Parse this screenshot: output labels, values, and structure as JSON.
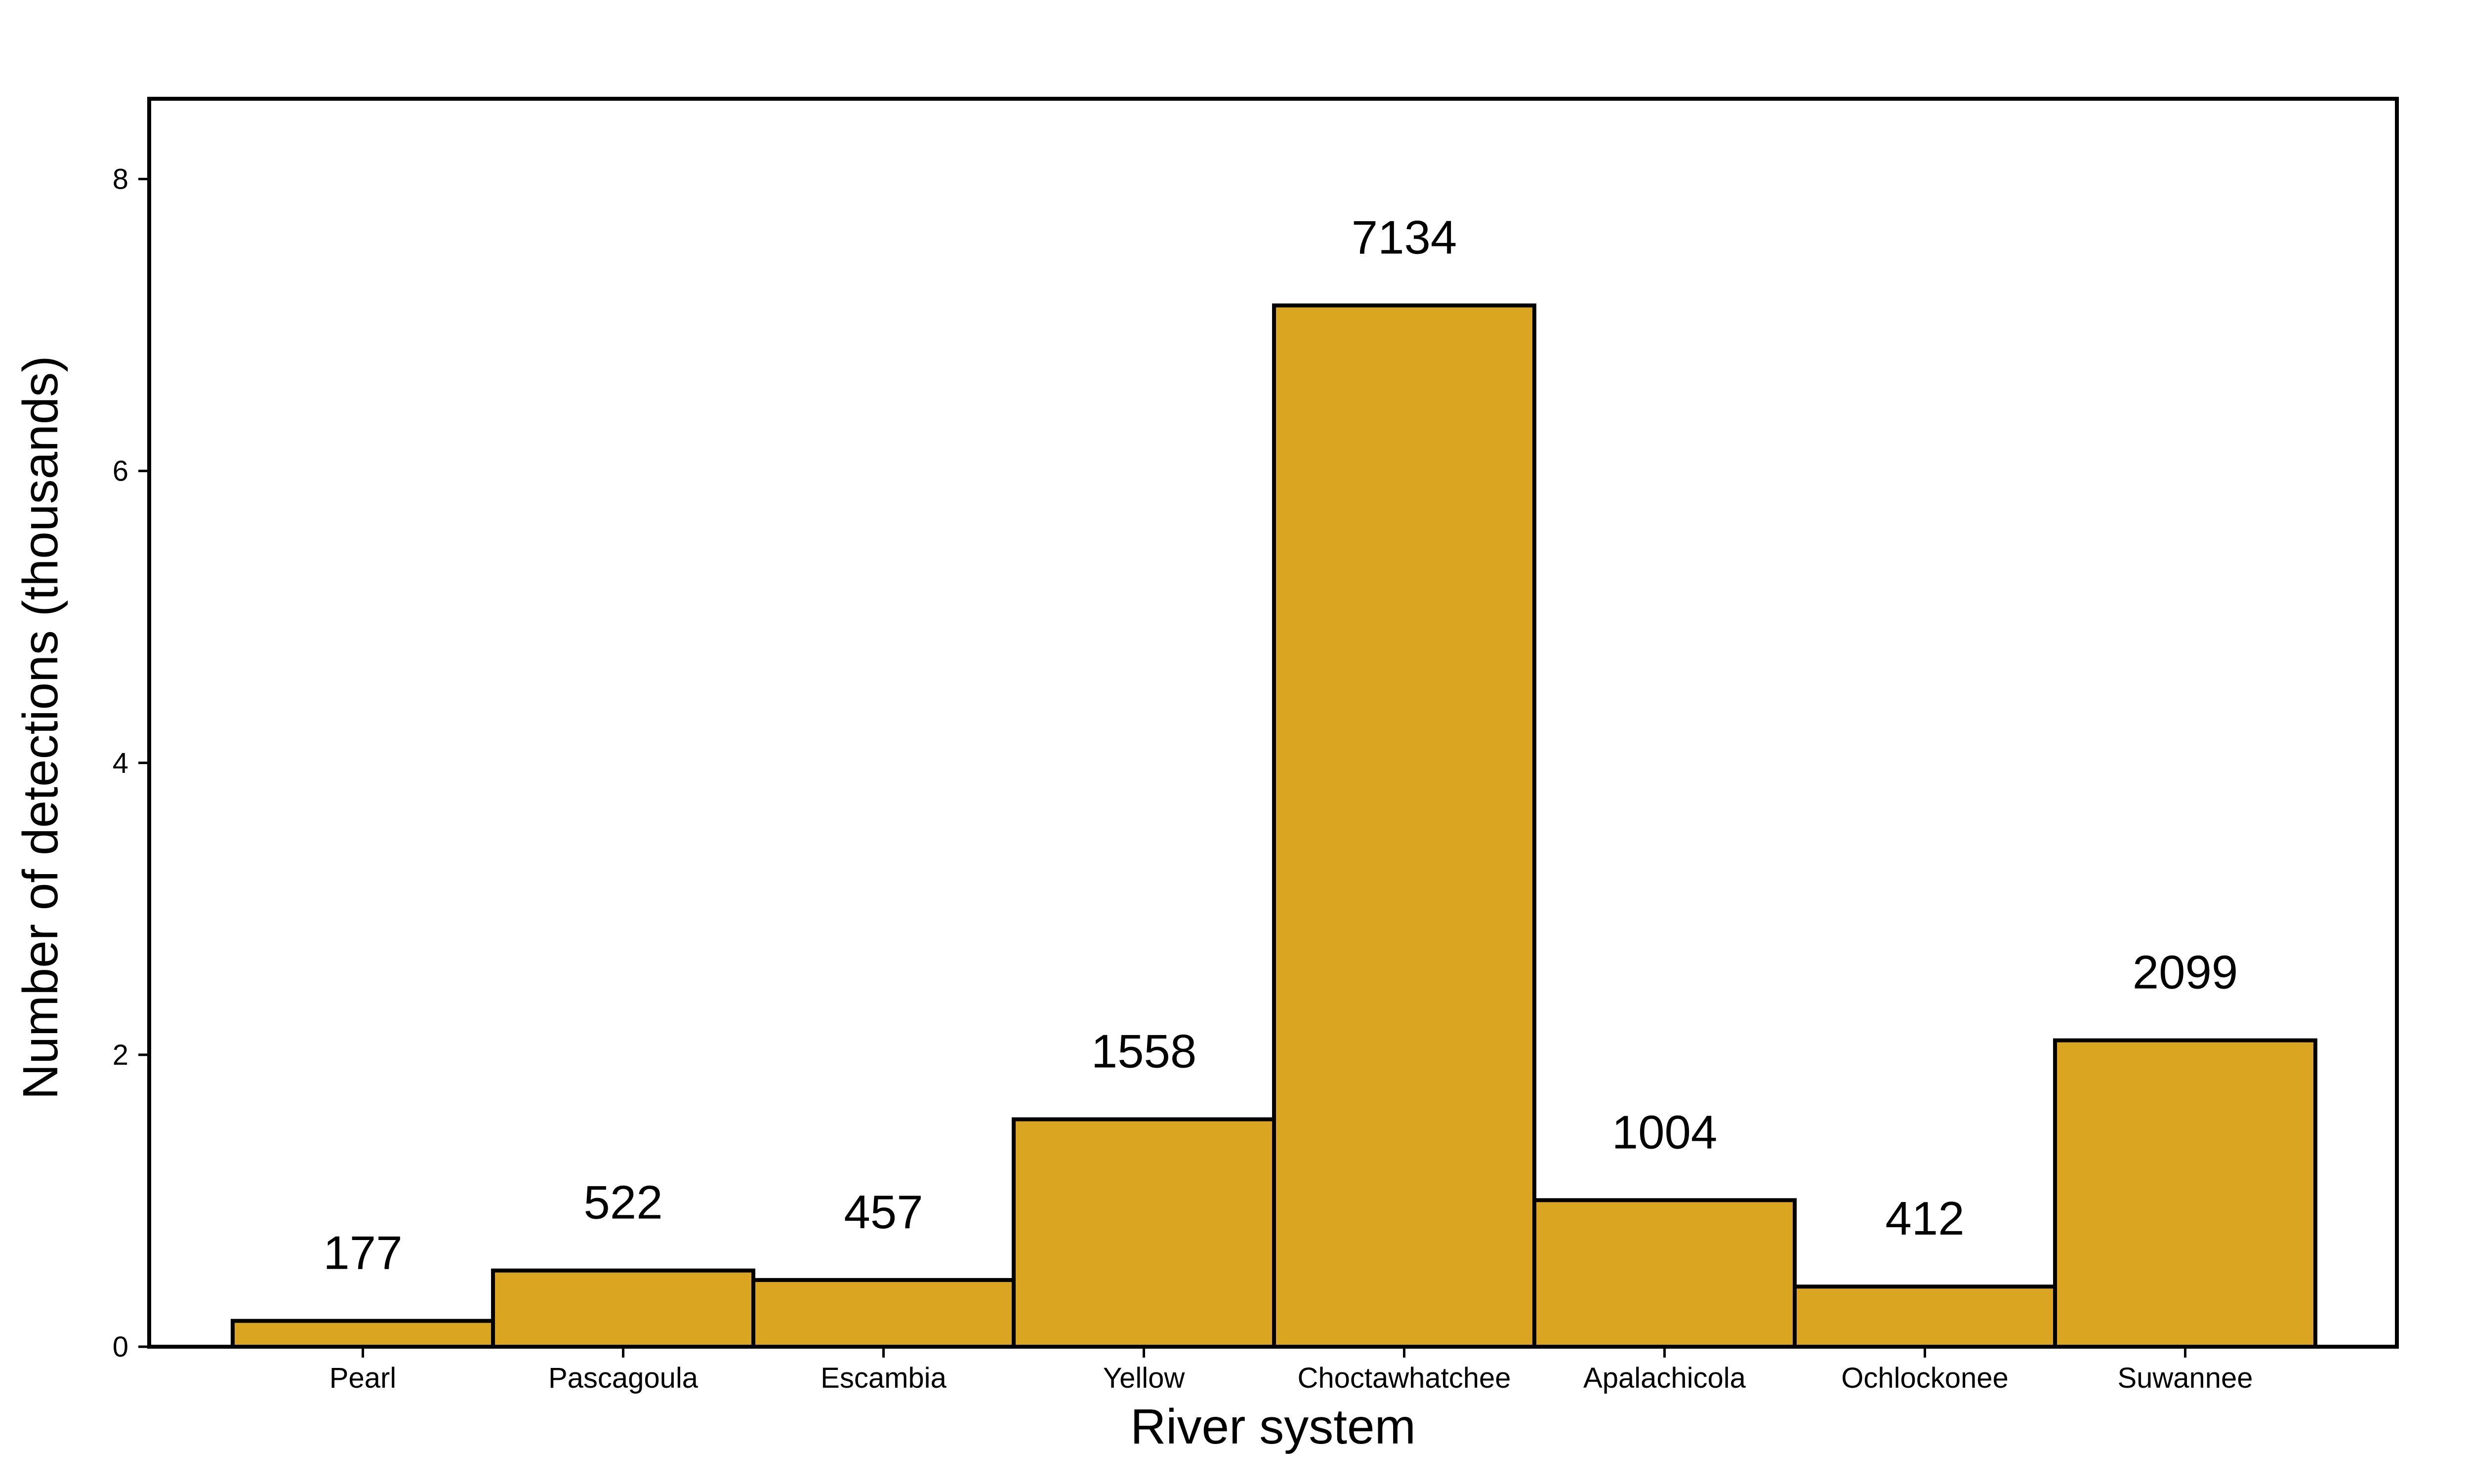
{
  "chart_data": {
    "type": "bar",
    "title": "",
    "xlabel": "River system",
    "ylabel": "Number of detections (thousands)",
    "categories": [
      "Pearl",
      "Pascagoula",
      "Escambia",
      "Yellow",
      "Choctawhatchee",
      "Apalachicola",
      "Ochlockonee",
      "Suwannee"
    ],
    "values": [
      177,
      522,
      457,
      1558,
      7134,
      1004,
      412,
      2099
    ],
    "data_labels": [
      "177",
      "522",
      "457",
      "1558",
      "7134",
      "1004",
      "412",
      "2099"
    ],
    "value_units_per_axis_unit": 1000,
    "ylim": [
      0,
      8.55
    ],
    "y_ticks": [
      0,
      2,
      4,
      6,
      8
    ],
    "grid": false,
    "legend": "none",
    "bar_color": "#DAA520",
    "bar_edge_color": "#000000"
  }
}
